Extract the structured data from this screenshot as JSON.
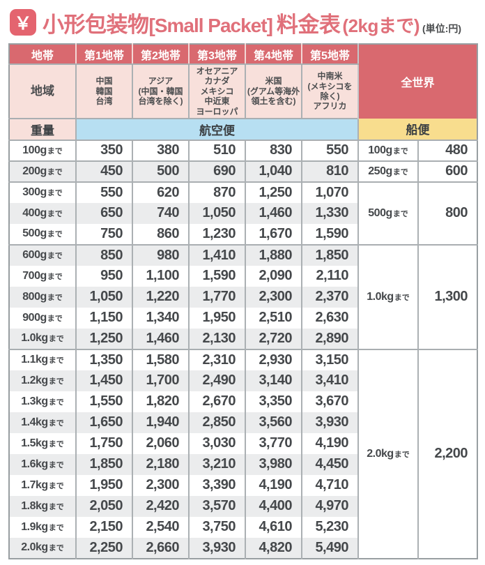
{
  "title": {
    "icon_glyph": "￥",
    "main": "小形包装物",
    "latin": "[Small Packet]",
    "fee": "料金表",
    "limit": "(2kgまで)",
    "unit_note": "(単位:円)"
  },
  "colors": {
    "header_rose": "#d9696f",
    "header_pink": "#f8e0db",
    "airmail_blue": "#b7dff2",
    "surface_yellow": "#f8dd8e",
    "row_shade_gray": "#ebeced",
    "title_rose": "#e0707a",
    "border_gray": "#a9aeb1"
  },
  "table": {
    "zone_label": "地帯",
    "zones": [
      "第1地帯",
      "第2地帯",
      "第3地帯",
      "第4地帯",
      "第5地帯"
    ],
    "world_label": "全世界",
    "region_label": "地域",
    "regions": [
      "中国\n韓国\n台湾",
      "アジア\n(中国・韓国\n台湾を除く)",
      "オセアニア\nカナダ\nメキシコ\n中近東\nヨーロッパ",
      "米国\n(グアム等海外\n領土を含む)",
      "中南米\n(メキシコを\n除く)\nアフリカ"
    ],
    "weight_label": "重量",
    "air_label": "航空便",
    "surface_label": "船便",
    "made_suffix": "まで",
    "rows": [
      {
        "weight": "100g",
        "values": [
          "350",
          "380",
          "510",
          "830",
          "550"
        ]
      },
      {
        "weight": "200g",
        "values": [
          "450",
          "500",
          "690",
          "1,040",
          "810"
        ]
      },
      {
        "weight": "300g",
        "values": [
          "550",
          "620",
          "870",
          "1,250",
          "1,070"
        ]
      },
      {
        "weight": "400g",
        "values": [
          "650",
          "740",
          "1,050",
          "1,460",
          "1,330"
        ]
      },
      {
        "weight": "500g",
        "values": [
          "750",
          "860",
          "1,230",
          "1,670",
          "1,590"
        ]
      },
      {
        "weight": "600g",
        "values": [
          "850",
          "980",
          "1,410",
          "1,880",
          "1,850"
        ]
      },
      {
        "weight": "700g",
        "values": [
          "950",
          "1,100",
          "1,590",
          "2,090",
          "2,110"
        ]
      },
      {
        "weight": "800g",
        "values": [
          "1,050",
          "1,220",
          "1,770",
          "2,300",
          "2,370"
        ]
      },
      {
        "weight": "900g",
        "values": [
          "1,150",
          "1,340",
          "1,950",
          "2,510",
          "2,630"
        ]
      },
      {
        "weight": "1.0kg",
        "values": [
          "1,250",
          "1,460",
          "2,130",
          "2,720",
          "2,890"
        ]
      },
      {
        "weight": "1.1kg",
        "values": [
          "1,350",
          "1,580",
          "2,310",
          "2,930",
          "3,150"
        ]
      },
      {
        "weight": "1.2kg",
        "values": [
          "1,450",
          "1,700",
          "2,490",
          "3,140",
          "3,410"
        ]
      },
      {
        "weight": "1.3kg",
        "values": [
          "1,550",
          "1,820",
          "2,670",
          "3,350",
          "3,670"
        ]
      },
      {
        "weight": "1.4kg",
        "values": [
          "1,650",
          "1,940",
          "2,850",
          "3,560",
          "3,930"
        ]
      },
      {
        "weight": "1.5kg",
        "values": [
          "1,750",
          "2,060",
          "3,030",
          "3,770",
          "4,190"
        ]
      },
      {
        "weight": "1.6kg",
        "values": [
          "1,850",
          "2,180",
          "3,210",
          "3,980",
          "4,450"
        ]
      },
      {
        "weight": "1.7kg",
        "values": [
          "1,950",
          "2,300",
          "3,390",
          "4,190",
          "4,710"
        ]
      },
      {
        "weight": "1.8kg",
        "values": [
          "2,050",
          "2,420",
          "3,570",
          "4,400",
          "4,970"
        ]
      },
      {
        "weight": "1.9kg",
        "values": [
          "2,150",
          "2,540",
          "3,750",
          "4,610",
          "5,230"
        ]
      },
      {
        "weight": "2.0kg",
        "values": [
          "2,250",
          "2,660",
          "3,930",
          "4,820",
          "5,490"
        ]
      }
    ],
    "surface_groups": [
      {
        "weight": "100g",
        "value": "480",
        "rowspan": 1
      },
      {
        "weight": "250g",
        "value": "600",
        "rowspan": 1
      },
      {
        "weight": "500g",
        "value": "800",
        "rowspan": 3
      },
      {
        "weight": "1.0kg",
        "value": "1,300",
        "rowspan": 5
      },
      {
        "weight": "2.0kg",
        "value": "2,200",
        "rowspan": 10
      }
    ]
  }
}
